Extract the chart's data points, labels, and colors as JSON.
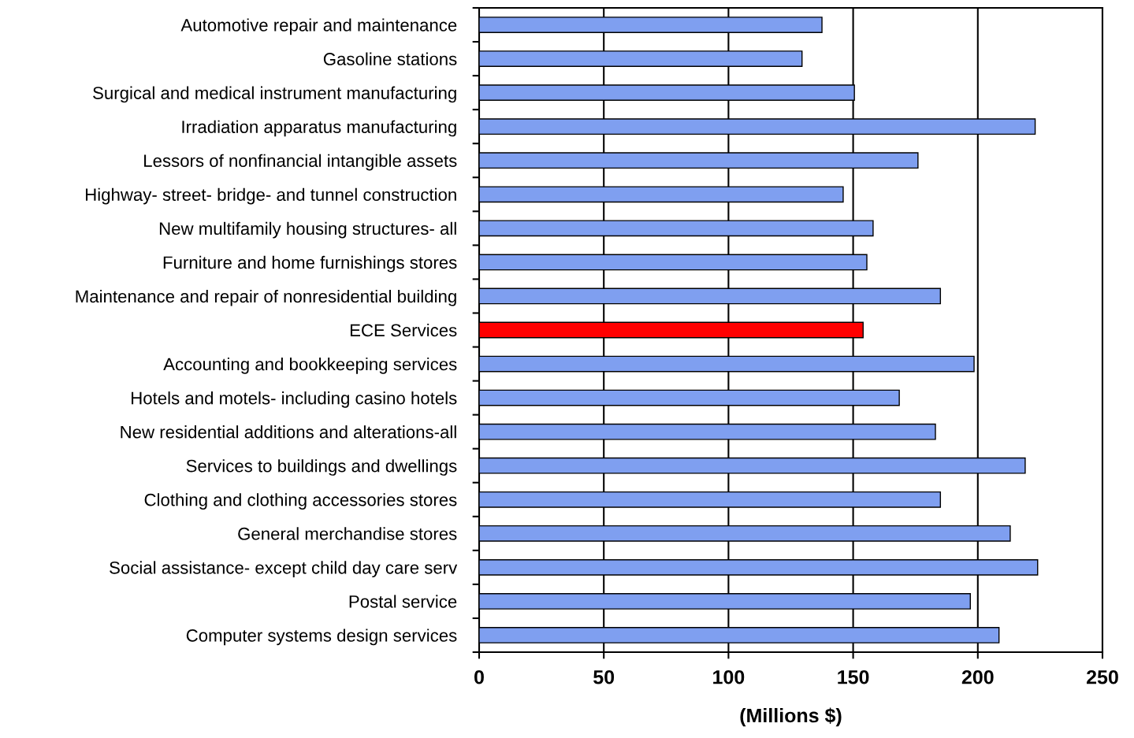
{
  "chart_data": {
    "type": "bar",
    "orientation": "horizontal",
    "xlabel": "(Millions $)",
    "categories": [
      "Automotive repair and maintenance",
      "Gasoline stations",
      "Surgical and medical instrument manufacturing",
      "Irradiation apparatus manufacturing",
      "Lessors of nonfinancial intangible assets",
      "Highway- street- bridge- and tunnel construction",
      "New multifamily housing structures- all",
      "Furniture and home furnishings stores",
      "Maintenance and repair of nonresidential building",
      "ECE Services",
      "Accounting and bookkeeping services",
      "Hotels and motels- including casino hotels",
      "New residential additions and alterations-all",
      "Services to buildings and dwellings",
      "Clothing and clothing accessories stores",
      "General merchandise stores",
      "Social assistance- except child day care serv",
      "Postal service",
      "Computer systems design services"
    ],
    "values": [
      137.5,
      129.5,
      150.5,
      223,
      176,
      146,
      158,
      155.5,
      185,
      154,
      198.5,
      168.5,
      183,
      219,
      185,
      213,
      224,
      197,
      208.5
    ],
    "colors": [
      "#7f9ff0",
      "#7f9ff0",
      "#7f9ff0",
      "#7f9ff0",
      "#7f9ff0",
      "#7f9ff0",
      "#7f9ff0",
      "#7f9ff0",
      "#7f9ff0",
      "#ff0000",
      "#7f9ff0",
      "#7f9ff0",
      "#7f9ff0",
      "#7f9ff0",
      "#7f9ff0",
      "#7f9ff0",
      "#7f9ff0",
      "#7f9ff0",
      "#7f9ff0"
    ],
    "xlim": [
      0,
      250
    ],
    "xticks": [
      0,
      50,
      100,
      150,
      200,
      250
    ],
    "grid": "x"
  }
}
